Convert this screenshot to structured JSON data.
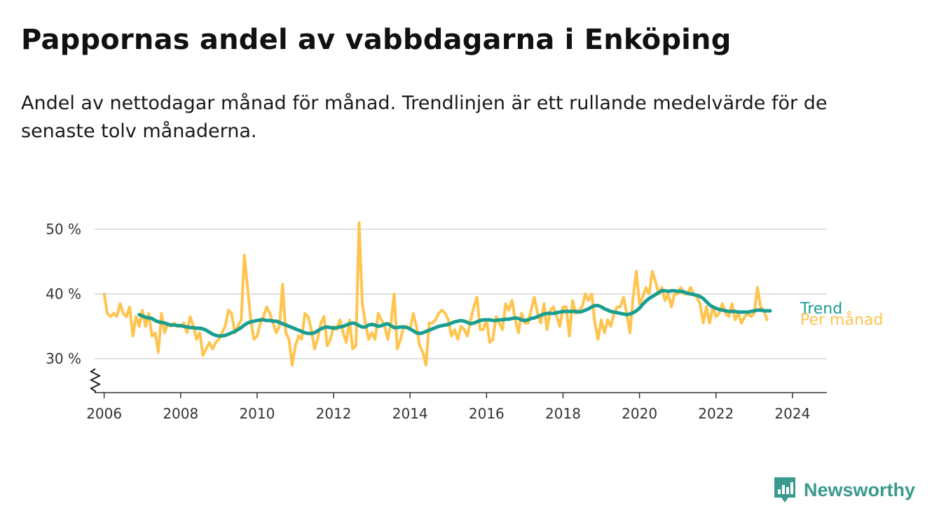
{
  "header": {
    "title": "Pappornas andel av vabbdagarna i Enköping",
    "subtitle": "Andel av nettodagar månad för månad. Trendlinjen är ett rullande medelvärde för de senaste tolv månaderna."
  },
  "chart_data": {
    "type": "line",
    "title": "Pappornas andel av vabbdagarna i Enköping",
    "xlabel": "",
    "ylabel": "",
    "xlim": [
      2005.75,
      2024.9
    ],
    "ylim": [
      25,
      50
    ],
    "x_ticks": [
      2006,
      2008,
      2010,
      2012,
      2014,
      2016,
      2018,
      2020,
      2022,
      2024
    ],
    "x_tick_labels": [
      "2006",
      "2008",
      "2010",
      "2012",
      "2014",
      "2016",
      "2018",
      "2020",
      "2022",
      "2024"
    ],
    "y_ticks": [
      30,
      40,
      50
    ],
    "y_tick_labels": [
      "30 %",
      "40 %",
      "50 %"
    ],
    "grid": true,
    "series": [
      {
        "name": "Per månad",
        "color": "#ffc44d",
        "start_year": 2006,
        "step": "month",
        "values": [
          40,
          37,
          36.5,
          37,
          36.5,
          38.5,
          37,
          36.5,
          38,
          33.5,
          36.5,
          35,
          37.5,
          35,
          37,
          33.5,
          34,
          31,
          37,
          34,
          35.5,
          35,
          35.5,
          35,
          35,
          35.5,
          34,
          36.5,
          35,
          33,
          34,
          30.5,
          31.5,
          32.5,
          31.5,
          32.5,
          33,
          34,
          35,
          37.5,
          37,
          34,
          35,
          36,
          46,
          41,
          36,
          33,
          33.5,
          35.5,
          36.5,
          38,
          37,
          35.5,
          34,
          35,
          41.5,
          34,
          33,
          29,
          32,
          33.5,
          33,
          37,
          36.5,
          34.5,
          31.5,
          33,
          35.5,
          36.5,
          32,
          33,
          35,
          34.5,
          36,
          34,
          32.5,
          36,
          31.5,
          32,
          51,
          38.5,
          35.5,
          33,
          34,
          33,
          37,
          36,
          35,
          33,
          35.5,
          40,
          31.5,
          33,
          35,
          35,
          34.5,
          37,
          35,
          32,
          31,
          29,
          35.5,
          35.5,
          36,
          37,
          37.5,
          37,
          36,
          33.5,
          34.5,
          33,
          35,
          34.5,
          33.5,
          36,
          38,
          39.5,
          34.5,
          34.5,
          36,
          32.5,
          33,
          36.5,
          35.5,
          34.5,
          38.5,
          37.5,
          39,
          36,
          34,
          37,
          35.5,
          35.5,
          37.5,
          39.5,
          37,
          35.5,
          38.5,
          34.5,
          37.5,
          38,
          36.5,
          35,
          38,
          38,
          33.5,
          39,
          37,
          37.5,
          38,
          40,
          39,
          40,
          35.5,
          33,
          36,
          34,
          36,
          35,
          37,
          38,
          38,
          39.5,
          37,
          34,
          39.5,
          43.5,
          38.5,
          39.5,
          41,
          40,
          43.5,
          42,
          40,
          41,
          39,
          40,
          38,
          40,
          40,
          41,
          40,
          40,
          41,
          40,
          39.5,
          38.5,
          35.5,
          38,
          35.5,
          38,
          36.5,
          37,
          38.5,
          37,
          36.5,
          38.5,
          36,
          37,
          35.5,
          36.5,
          37,
          36.5,
          37,
          41,
          38,
          37.5,
          36
        ]
      },
      {
        "name": "Trend",
        "color": "#1a9e90",
        "start_year": 2006.917,
        "step": "month",
        "values": [
          36.8,
          36.6,
          36.4,
          36.3,
          36.2,
          35.9,
          35.7,
          35.6,
          35.5,
          35.3,
          35.2,
          35.2,
          35.1,
          35.1,
          35.0,
          34.9,
          34.8,
          34.8,
          34.7,
          34.7,
          34.6,
          34.4,
          34.1,
          33.8,
          33.6,
          33.5,
          33.5,
          33.6,
          33.8,
          34.0,
          34.2,
          34.5,
          34.8,
          35.2,
          35.5,
          35.7,
          35.8,
          35.9,
          36.0,
          36.0,
          35.9,
          35.9,
          35.8,
          35.8,
          35.6,
          35.4,
          35.2,
          35.0,
          34.8,
          34.6,
          34.4,
          34.2,
          34.0,
          33.9,
          33.9,
          34.0,
          34.3,
          34.6,
          34.8,
          34.9,
          34.8,
          34.7,
          34.8,
          34.9,
          35.0,
          35.2,
          35.4,
          35.5,
          35.4,
          35.1,
          34.9,
          34.9,
          35.2,
          35.3,
          35.2,
          35.0,
          35.1,
          35.3,
          35.4,
          35.1,
          34.8,
          34.8,
          34.9,
          34.9,
          34.8,
          34.6,
          34.3,
          34.0,
          33.9,
          34.0,
          34.2,
          34.4,
          34.6,
          34.8,
          35.0,
          35.1,
          35.2,
          35.3,
          35.5,
          35.7,
          35.8,
          35.9,
          35.8,
          35.6,
          35.4,
          35.5,
          35.7,
          35.9,
          36.0,
          36.0,
          36.0,
          35.9,
          35.9,
          36.0,
          36.0,
          36.1,
          36.1,
          36.2,
          36.3,
          36.2,
          36.0,
          35.9,
          36.0,
          36.2,
          36.3,
          36.5,
          36.7,
          36.9,
          37.0,
          37.0,
          37.0,
          37.1,
          37.2,
          37.3,
          37.3,
          37.3,
          37.3,
          37.3,
          37.2,
          37.3,
          37.5,
          37.7,
          38.0,
          38.2,
          38.2,
          38.0,
          37.7,
          37.5,
          37.3,
          37.2,
          37.1,
          37.0,
          36.9,
          36.8,
          36.9,
          37.1,
          37.4,
          37.8,
          38.4,
          38.9,
          39.3,
          39.6,
          39.9,
          40.2,
          40.5,
          40.5,
          40.4,
          40.5,
          40.5,
          40.4,
          40.4,
          40.3,
          40.1,
          40.0,
          39.9,
          39.8,
          39.6,
          39.3,
          38.8,
          38.3,
          38.0,
          37.8,
          37.6,
          37.5,
          37.4,
          37.3,
          37.3,
          37.3,
          37.2,
          37.2,
          37.2,
          37.2,
          37.3,
          37.4,
          37.5,
          37.5,
          37.4,
          37.4,
          37.4
        ]
      }
    ]
  },
  "legend": {
    "trend_label": "Trend",
    "monthly_label": "Per månad"
  },
  "branding": {
    "name": "Newsworthy",
    "color": "#3a9a8d",
    "icon": "newsworthy-logo-icon"
  }
}
